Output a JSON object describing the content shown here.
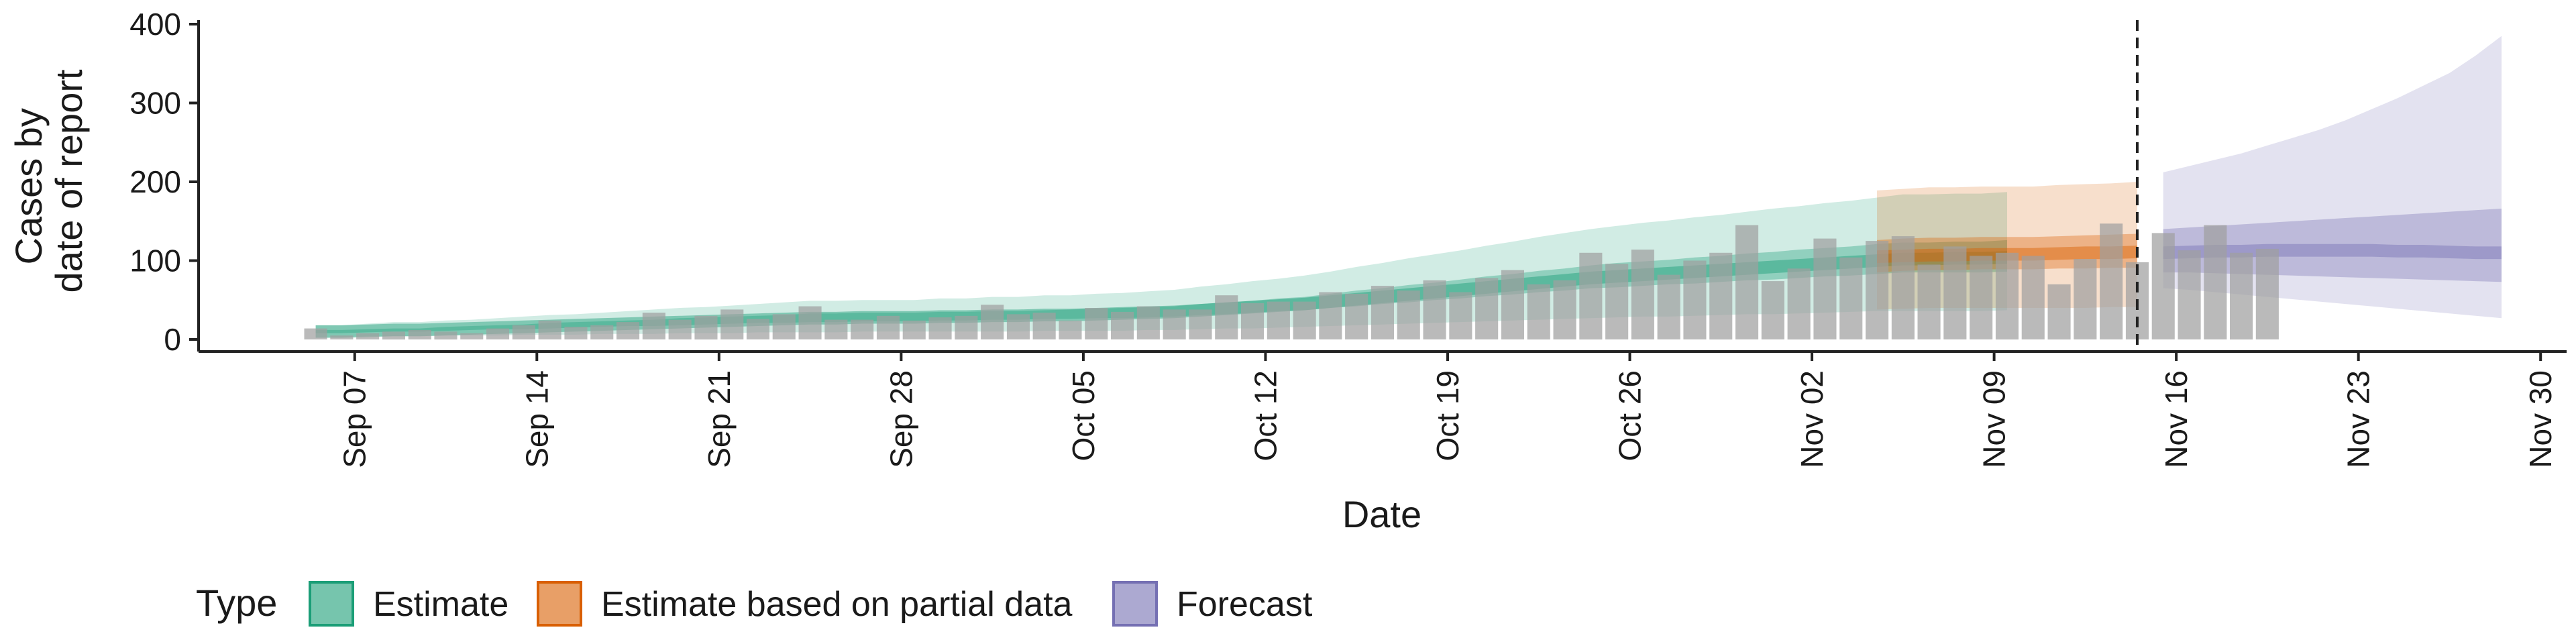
{
  "chart_data": {
    "type": "area",
    "title": "",
    "xlabel": "Date",
    "ylabel": [
      "Cases by",
      "date of report"
    ],
    "ylim": [
      0,
      400
    ],
    "yticks": [
      0,
      100,
      200,
      300,
      400
    ],
    "xlim": [
      "2020-09-01",
      "2020-12-01"
    ],
    "xticks": [
      {
        "date": "2020-09-07",
        "label": "Sep 07"
      },
      {
        "date": "2020-09-14",
        "label": "Sep 14"
      },
      {
        "date": "2020-09-21",
        "label": "Sep 21"
      },
      {
        "date": "2020-09-28",
        "label": "Sep 28"
      },
      {
        "date": "2020-10-05",
        "label": "Oct 05"
      },
      {
        "date": "2020-10-12",
        "label": "Oct 12"
      },
      {
        "date": "2020-10-19",
        "label": "Oct 19"
      },
      {
        "date": "2020-10-26",
        "label": "Oct 26"
      },
      {
        "date": "2020-11-02",
        "label": "Nov 02"
      },
      {
        "date": "2020-11-09",
        "label": "Nov 09"
      },
      {
        "date": "2020-11-16",
        "label": "Nov 16"
      },
      {
        "date": "2020-11-23",
        "label": "Nov 23"
      },
      {
        "date": "2020-11-30",
        "label": "Nov 30"
      }
    ],
    "vline_date": "2020-11-14",
    "grid": false,
    "legend": {
      "title": "Type",
      "position": "bottom-left",
      "entries": [
        {
          "label": "Estimate",
          "color": "#1b9e77"
        },
        {
          "label": "Estimate based on partial data",
          "color": "#d95f02"
        },
        {
          "label": "Forecast",
          "color": "#7570b3"
        }
      ]
    },
    "bars": {
      "start_date": "2020-09-05",
      "color": "#a0a0a0",
      "values": [
        14,
        5,
        8,
        10,
        12,
        10,
        8,
        14,
        18,
        24,
        16,
        18,
        22,
        34,
        25,
        30,
        38,
        26,
        32,
        42,
        25,
        25,
        30,
        24,
        28,
        30,
        44,
        32,
        34,
        24,
        40,
        35,
        42,
        38,
        38,
        56,
        46,
        48,
        48,
        60,
        58,
        68,
        62,
        75,
        60,
        78,
        88,
        70,
        75,
        110,
        96,
        114,
        82,
        100,
        110,
        145,
        74,
        90,
        128,
        104,
        125,
        131,
        95,
        118,
        106,
        110,
        106,
        70,
        102,
        147,
        98,
        135,
        113,
        145,
        110,
        115
      ]
    },
    "series": [
      {
        "name": "Estimate",
        "color": "#1b9e77",
        "start_date": "2020-09-05",
        "median": [
          10,
          10,
          11,
          12,
          12,
          13,
          14,
          15,
          16,
          17,
          18,
          19,
          20,
          21,
          22,
          23,
          24,
          25,
          26,
          27,
          27,
          28,
          28,
          28,
          29,
          29,
          30,
          30,
          31,
          31,
          32,
          33,
          34,
          35,
          37,
          39,
          41,
          43,
          45,
          48,
          51,
          54,
          57,
          60,
          63,
          66,
          69,
          72,
          75,
          78,
          80,
          82,
          84,
          86,
          88,
          90,
          92,
          94,
          96,
          98,
          100,
          102,
          102,
          103,
          103,
          104
        ],
        "lower50": [
          8,
          8,
          9,
          10,
          10,
          11,
          12,
          13,
          13,
          14,
          15,
          16,
          17,
          17,
          18,
          19,
          20,
          21,
          21,
          22,
          22,
          23,
          23,
          23,
          24,
          24,
          25,
          25,
          26,
          26,
          27,
          27,
          28,
          29,
          31,
          32,
          34,
          36,
          37,
          40,
          42,
          45,
          47,
          50,
          52,
          55,
          57,
          60,
          62,
          65,
          66,
          68,
          70,
          71,
          73,
          75,
          76,
          78,
          80,
          81,
          83,
          85,
          85,
          85,
          85,
          86
        ],
        "upper50": [
          12,
          12,
          13,
          14,
          14,
          16,
          17,
          18,
          19,
          21,
          22,
          23,
          24,
          25,
          27,
          28,
          29,
          30,
          31,
          33,
          33,
          34,
          34,
          34,
          35,
          35,
          36,
          36,
          37,
          38,
          39,
          40,
          41,
          42,
          45,
          47,
          49,
          52,
          54,
          58,
          62,
          65,
          69,
          72,
          76,
          80,
          83,
          87,
          90,
          94,
          97,
          99,
          101,
          104,
          106,
          109,
          111,
          114,
          116,
          118,
          121,
          123,
          123,
          124,
          124,
          126
        ],
        "lower90": [
          3,
          3,
          4,
          4,
          4,
          5,
          5,
          5,
          6,
          6,
          6,
          7,
          7,
          7,
          8,
          8,
          8,
          9,
          9,
          9,
          9,
          10,
          10,
          10,
          10,
          10,
          10,
          10,
          11,
          11,
          11,
          11,
          12,
          12,
          13,
          14,
          14,
          15,
          16,
          17,
          18,
          19,
          20,
          21,
          22,
          23,
          24,
          25,
          26,
          27,
          28,
          29,
          29,
          30,
          31,
          32,
          32,
          33,
          34,
          35,
          36,
          36,
          36,
          36,
          36,
          37
        ],
        "upper90": [
          18,
          18,
          20,
          22,
          22,
          24,
          25,
          27,
          29,
          31,
          32,
          34,
          36,
          38,
          40,
          41,
          43,
          45,
          47,
          49,
          49,
          50,
          50,
          50,
          52,
          52,
          54,
          54,
          56,
          56,
          58,
          59,
          61,
          63,
          67,
          70,
          74,
          77,
          81,
          86,
          92,
          97,
          103,
          108,
          113,
          119,
          124,
          130,
          135,
          140,
          144,
          148,
          151,
          155,
          158,
          162,
          166,
          169,
          173,
          176,
          180,
          184,
          184,
          185,
          185,
          187
        ]
      },
      {
        "name": "Estimate based on partial data",
        "color": "#d95f02",
        "start_date": "2020-11-04",
        "median": [
          105,
          106,
          107,
          107,
          108,
          108,
          108,
          109,
          110,
          110,
          111
        ],
        "lower50": [
          85,
          87,
          88,
          88,
          89,
          89,
          89,
          90,
          90,
          91,
          91
        ],
        "upper50": [
          126,
          128,
          129,
          129,
          130,
          130,
          130,
          131,
          132,
          133,
          134
        ],
        "lower90": [
          38,
          39,
          40,
          40,
          40,
          40,
          40,
          40,
          40,
          41,
          41
        ],
        "upper90": [
          189,
          191,
          193,
          193,
          194,
          194,
          194,
          196,
          197,
          198,
          200
        ]
      },
      {
        "name": "Forecast",
        "color": "#7570b3",
        "start_date": "2020-11-15",
        "median": [
          110,
          111,
          112,
          112,
          113,
          113,
          113,
          113,
          113,
          112,
          112,
          111,
          110,
          110
        ],
        "lower50": [
          85,
          85,
          84,
          83,
          82,
          81,
          80,
          79,
          78,
          77,
          76,
          75,
          74,
          73
        ],
        "upper50": [
          140,
          142,
          144,
          146,
          148,
          150,
          152,
          154,
          156,
          158,
          160,
          162,
          164,
          166
        ],
        "lower90": [
          65,
          63,
          60,
          57,
          54,
          51,
          48,
          45,
          42,
          39,
          36,
          33,
          30,
          27
        ],
        "upper90": [
          212,
          220,
          228,
          236,
          246,
          256,
          266,
          278,
          292,
          306,
          322,
          338,
          360,
          385
        ]
      }
    ]
  }
}
